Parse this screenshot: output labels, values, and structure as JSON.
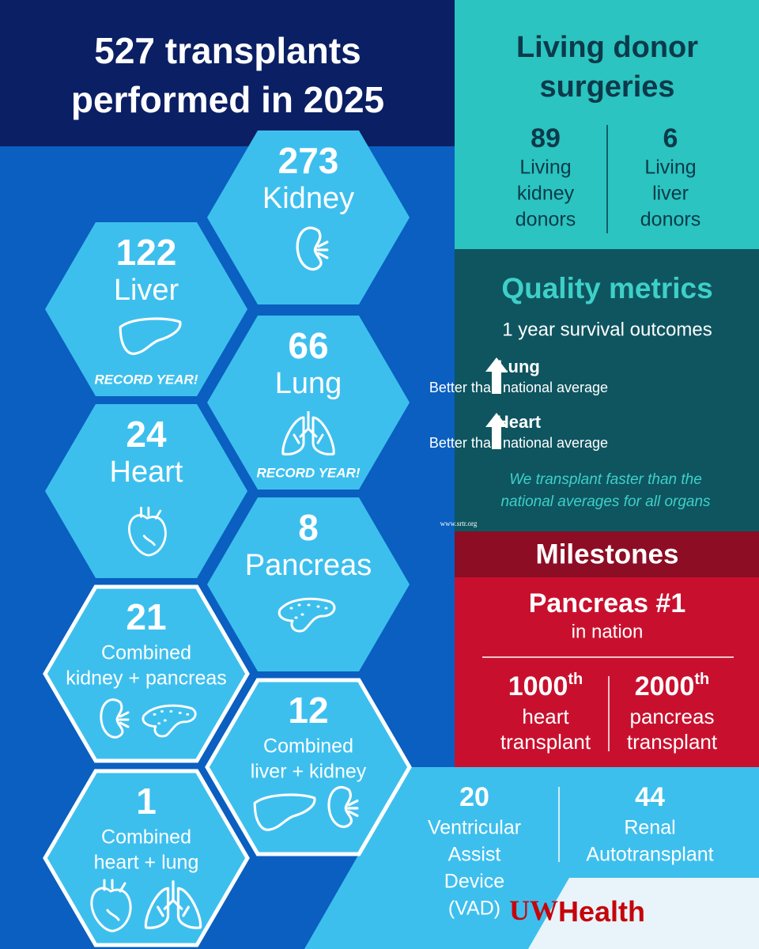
{
  "header": {
    "title_lines": [
      "527 transplants",
      "performed in 2025"
    ]
  },
  "organs": [
    {
      "count": 273,
      "label_lines": [
        "Kidney"
      ]
    },
    {
      "count": 122,
      "label_lines": [
        "Liver"
      ],
      "note": "RECORD YEAR!"
    },
    {
      "count": 66,
      "label_lines": [
        "Lung"
      ],
      "note": "RECORD YEAR!"
    },
    {
      "count": 24,
      "label_lines": [
        "Heart"
      ]
    },
    {
      "count": 8,
      "label_lines": [
        "Pancreas"
      ]
    },
    {
      "count": 21,
      "label_lines": [
        "Combined",
        "kidney + pancreas"
      ]
    },
    {
      "count": 12,
      "label_lines": [
        "Combined",
        "liver + kidney"
      ]
    },
    {
      "count": 1,
      "label_lines": [
        "Combined",
        "heart + lung"
      ]
    }
  ],
  "living_donor": {
    "title_lines": [
      "Living donor",
      "surgeries"
    ],
    "items": [
      {
        "count": 89,
        "label_lines": [
          "Living",
          "kidney",
          "donors"
        ]
      },
      {
        "count": 6,
        "label_lines": [
          "Living",
          "liver",
          "donors"
        ]
      }
    ]
  },
  "quality": {
    "title": "Quality metrics",
    "subtitle": "1 year survival outcomes",
    "items": [
      {
        "organ": "Lung",
        "text": "Better than national average"
      },
      {
        "organ": "Heart",
        "text": "Better than national average"
      }
    ],
    "note_lines": [
      "We transplant faster than the",
      "national averages for all organs"
    ],
    "source": "www.srtr.org"
  },
  "milestones": {
    "title": "Milestones",
    "headline": "Pancreas #1",
    "headline_sub": "in nation",
    "items": [
      {
        "number": 1000,
        "suffix": "th",
        "label_lines": [
          "heart",
          "transplant"
        ]
      },
      {
        "number": 2000,
        "suffix": "th",
        "label_lines": [
          "pancreas",
          "transplant"
        ]
      }
    ]
  },
  "other": [
    {
      "count": 20,
      "label_lines": [
        "Ventricular",
        "Assist",
        "Device",
        "(VAD)"
      ]
    },
    {
      "count": 44,
      "label_lines": [
        "Renal",
        "Autotransplant"
      ]
    }
  ],
  "logo": {
    "uw": "UW",
    "health": "Health"
  }
}
